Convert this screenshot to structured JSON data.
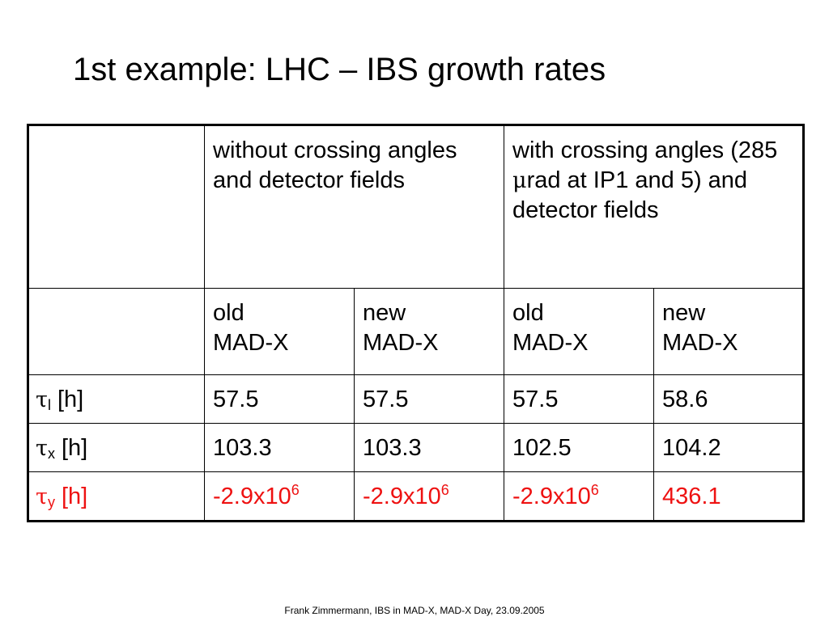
{
  "title": "1st example: LHC – IBS growth rates",
  "table": {
    "header_top": {
      "empty": "",
      "col_group_1": "without crossing angles and detector fields",
      "col_group_2_pre": "with crossing angles (285 ",
      "col_group_2_mu": "μ",
      "col_group_2_post": "rad at IP1 and 5) and detector fields"
    },
    "header_sub": {
      "empty": "",
      "cols": [
        {
          "line1": "old",
          "line2": "MAD-X"
        },
        {
          "line1": "new",
          "line2": "MAD-X"
        },
        {
          "line1": "old",
          "line2": "MAD-X"
        },
        {
          "line1": "new",
          "line2": "MAD-X"
        }
      ]
    },
    "rows": [
      {
        "symbol": "τ",
        "subscript": "l",
        "unit": " [h]",
        "values": [
          "57.5",
          "57.5",
          "57.5",
          "58.6"
        ]
      },
      {
        "symbol": "τ",
        "subscript": "x",
        "unit": " [h]",
        "values": [
          "103.3",
          "103.3",
          "102.5",
          "104.2"
        ]
      },
      {
        "symbol": "τ",
        "subscript": "y",
        "unit": " [h]",
        "highlight_color": "#ee1111",
        "values": [
          {
            "base": "-2.9x10",
            "exp": "6"
          },
          {
            "base": "-2.9x10",
            "exp": "6"
          },
          {
            "base": "-2.9x10",
            "exp": "6"
          },
          {
            "base": "436.1",
            "exp": ""
          }
        ]
      }
    ]
  },
  "footer": "Frank Zimmermann, IBS in MAD-X, MAD-X Day, 23.09.2005"
}
